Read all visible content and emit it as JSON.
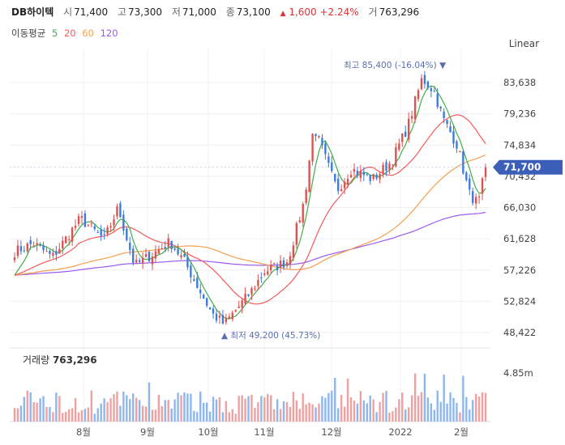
{
  "header": {
    "name": "DB하이텍",
    "open_label": "시",
    "open": "71,400",
    "high_label": "고",
    "high": "73,300",
    "low_label": "저",
    "low": "71,000",
    "close_label": "종",
    "close": "73,100",
    "change_arrow": "▲",
    "change": "1,600",
    "change_pct": "+2.24%",
    "volume_label": "거",
    "volume": "763,296"
  },
  "ma_legend": {
    "label": "이동평균",
    "items": [
      {
        "text": "5",
        "color": "#3fae49"
      },
      {
        "text": "20",
        "color": "#f25c5c"
      },
      {
        "text": "60",
        "color": "#f5a050"
      },
      {
        "text": "120",
        "color": "#9b59f0"
      }
    ]
  },
  "scale_mode": "Linear",
  "chart_data": {
    "type": "candlestick",
    "y_ticks": [
      "83,638",
      "79,236",
      "74,834",
      "70,432",
      "66,030",
      "61,628",
      "57,226",
      "52,824",
      "48,422"
    ],
    "y_tick_values": [
      83638,
      79236,
      74834,
      70432,
      66030,
      61628,
      57226,
      52824,
      48422
    ],
    "x_ticks": [
      "8월",
      "9월",
      "10월",
      "11월",
      "12월",
      "2022",
      "2월"
    ],
    "current_price_label": "71,700",
    "current_price": 71700,
    "max_annotation": "최고 85,400 (-16.04%) ▼",
    "min_annotation": "▲ 최저 49,200 (45.73%)",
    "volume_label": "거래량",
    "volume_value": "763,296",
    "volume_tick": "4.85m",
    "up_color": "#e05050",
    "down_color": "#3d7bd9",
    "ma_colors": {
      "ma5": "#3fae49",
      "ma20": "#f25c5c",
      "ma60": "#f5a050",
      "ma120": "#9b59f0"
    },
    "key_closes": [
      {
        "pos": 0,
        "close": 59800
      },
      {
        "pos": 0.04,
        "close": 61000
      },
      {
        "pos": 0.08,
        "close": 59000
      },
      {
        "pos": 0.14,
        "close": 64500
      },
      {
        "pos": 0.19,
        "close": 61500
      },
      {
        "pos": 0.22,
        "close": 66000
      },
      {
        "pos": 0.255,
        "close": 57800
      },
      {
        "pos": 0.3,
        "close": 59800
      },
      {
        "pos": 0.33,
        "close": 61200
      },
      {
        "pos": 0.36,
        "close": 58500
      },
      {
        "pos": 0.42,
        "close": 51000
      },
      {
        "pos": 0.445,
        "close": 49600
      },
      {
        "pos": 0.5,
        "close": 54000
      },
      {
        "pos": 0.53,
        "close": 57000
      },
      {
        "pos": 0.58,
        "close": 58500
      },
      {
        "pos": 0.615,
        "close": 67000
      },
      {
        "pos": 0.635,
        "close": 77500
      },
      {
        "pos": 0.665,
        "close": 72000
      },
      {
        "pos": 0.685,
        "close": 68500
      },
      {
        "pos": 0.715,
        "close": 71500
      },
      {
        "pos": 0.76,
        "close": 70000
      },
      {
        "pos": 0.8,
        "close": 72500
      },
      {
        "pos": 0.835,
        "close": 77500
      },
      {
        "pos": 0.865,
        "close": 84200
      },
      {
        "pos": 0.89,
        "close": 82500
      },
      {
        "pos": 0.91,
        "close": 78500
      },
      {
        "pos": 0.94,
        "close": 74800
      },
      {
        "pos": 0.965,
        "close": 68000
      },
      {
        "pos": 0.985,
        "close": 66500
      },
      {
        "pos": 1.0,
        "close": 71700
      }
    ]
  }
}
